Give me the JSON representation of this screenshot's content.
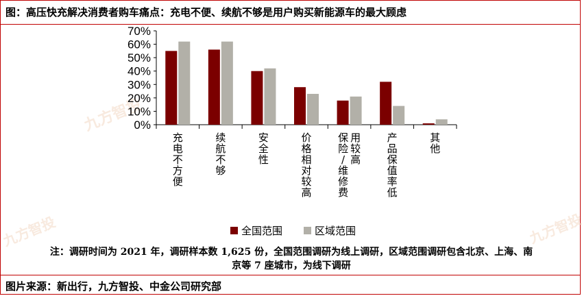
{
  "title": "图：高压快充解决消费者购车痛点：充电不便、续航不够是用户购买新能源车的最大顾虑",
  "watermarks": [
    "九方智投",
    "九方智投",
    "九方智投"
  ],
  "chart_data": {
    "type": "bar",
    "categories": [
      "充电不方便",
      "续航不够",
      "安全性",
      "价格相对较高",
      "保险/维修费用较高",
      "产品保值率低",
      "其他"
    ],
    "series": [
      {
        "name": "全国范围",
        "values": [
          55,
          56,
          40,
          28,
          18,
          32,
          1
        ]
      },
      {
        "name": "区域范围",
        "values": [
          62,
          62,
          42,
          23,
          21,
          14,
          4
        ]
      }
    ],
    "ylim": [
      0,
      70
    ],
    "yticks": [
      "0%",
      "10%",
      "20%",
      "30%",
      "40%",
      "50%",
      "60%",
      "70%"
    ],
    "colors": [
      "#7b0000",
      "#b2b0a8"
    ],
    "legend_position": "bottom"
  },
  "note_lines": [
    "注：调研时间为 2021 年，调研样本数 1,625 份，全国范围调研为线上调研，区域范围调研包含北京、上海、南",
    "京等 7 座城市，为线下调研"
  ],
  "source": "图片来源：新出行，九方智投、中金公司研究部"
}
